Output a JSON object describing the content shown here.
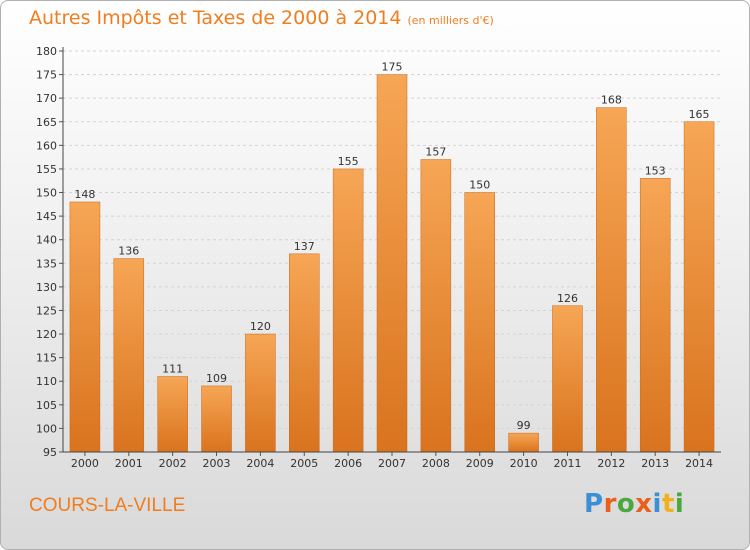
{
  "title": {
    "main": "Autres Impôts et Taxes de 2000 à 2014",
    "unit": "(en milliers d'€)"
  },
  "place": "COURS-LA-VILLE",
  "logo": {
    "letters": [
      "P",
      "r",
      "o",
      "x",
      "i",
      "t",
      "i"
    ],
    "colors": [
      "#3a8fd6",
      "#e8601c",
      "#4aa83c",
      "#e8601c",
      "#3a8fd6",
      "#f2b01e",
      "#4aa83c"
    ]
  },
  "colors": {
    "accent": "#f07d1e",
    "bar_light": "#f6a655",
    "bar_dark": "#d9731e"
  },
  "chart_data": {
    "type": "bar",
    "categories": [
      "2000",
      "2001",
      "2002",
      "2003",
      "2004",
      "2005",
      "2006",
      "2007",
      "2008",
      "2009",
      "2010",
      "2011",
      "2012",
      "2013",
      "2014"
    ],
    "values": [
      148,
      136,
      111,
      109,
      120,
      137,
      155,
      175,
      157,
      150,
      99,
      126,
      168,
      153,
      165
    ],
    "title": "Autres Impôts et Taxes de 2000 à 2014",
    "subtitle": "(en milliers d'€)",
    "ylim": [
      95,
      180
    ],
    "yticks": [
      95,
      100,
      105,
      110,
      115,
      120,
      125,
      130,
      135,
      140,
      145,
      150,
      155,
      160,
      165,
      170,
      175,
      180
    ],
    "grid": true,
    "data_labels": true
  }
}
